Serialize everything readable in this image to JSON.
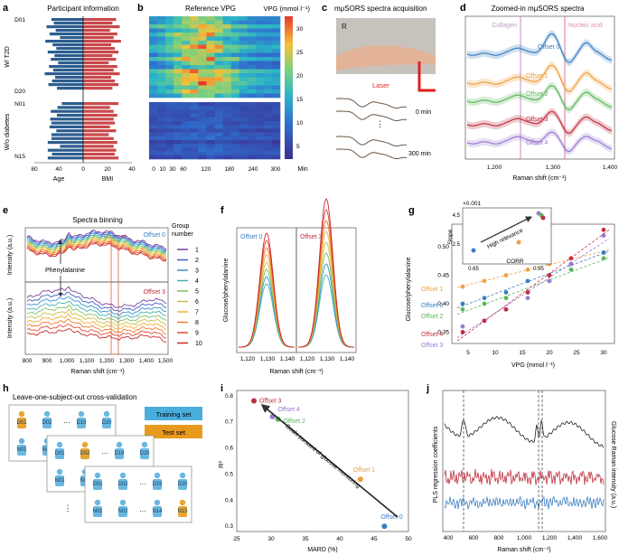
{
  "panels": {
    "a": {
      "letter": "a",
      "title": "Participant information",
      "group1": "W/ T2D",
      "group2": "W/o diabetes",
      "row_labels": [
        "D01",
        "D20",
        "N01",
        "N15"
      ],
      "xlabel_left": "Age",
      "xlabel_right": "BMI",
      "xticks": [
        "80",
        "40",
        "0",
        "20",
        "40"
      ]
    },
    "b": {
      "letter": "b",
      "title": "Reference VPG",
      "xlabel": "Min",
      "cbar_label": "VPG (mmol l⁻¹)",
      "xticks": [
        "0",
        "10",
        "30",
        "60",
        "120",
        "180",
        "240",
        "300"
      ],
      "cbar_ticks": [
        "30",
        "25",
        "20",
        "15",
        "10",
        "5"
      ]
    },
    "c": {
      "letter": "c",
      "title": "mμSORS spectra acquisition",
      "corner": "R",
      "laser": "Laser",
      "t_start": "0 min",
      "t_end": "300 min",
      "dots": "⋮"
    },
    "d": {
      "letter": "d",
      "title": "Zoomed-in mμSORS spectra",
      "xlabel": "Raman shift (cm⁻¹)",
      "xticks": [
        "1,200",
        "1,300",
        "1,400"
      ],
      "marker1": "Collagen",
      "marker2": "Nucleic acid",
      "offsets": [
        "Offset 0",
        "Offset 1",
        "Offset 2",
        "Offset 3",
        "Offset 4"
      ]
    },
    "e": {
      "letter": "e",
      "title": "Spectra binning",
      "ylabel_top": "Intensity (a.u.)",
      "ylabel_bottom": "Intensity (a.u.)",
      "xlabel": "Raman shift (cm⁻¹)",
      "xticks": [
        "800",
        "900",
        "1,000",
        "1,100",
        "1,200",
        "1,300",
        "1,400",
        "1,500"
      ],
      "offset_top": "Offset 0",
      "offset_bottom": "Offset 3",
      "glucose": "Glucose",
      "phenylalanine": "Phenylalanine",
      "legend_title": "Group\nnumber",
      "legend": [
        "1",
        "2",
        "3",
        "4",
        "5",
        "6",
        "7",
        "8",
        "9",
        "10"
      ]
    },
    "f": {
      "letter": "f",
      "ylabel": "Glucose/phenylalanine",
      "xlabel": "Raman shift (cm⁻¹)",
      "xticks": [
        "1,120",
        "1,130",
        "1,140"
      ],
      "label_left": "Offset 0",
      "label_right": "Offset 3"
    },
    "g": {
      "letter": "g",
      "ylabel": "Glucose/phenylalanine",
      "xlabel": "VPG (mmol l⁻¹)",
      "xticks": [
        "5",
        "10",
        "15",
        "20",
        "25",
        "30"
      ],
      "yticks": [
        "0.35",
        "0.40",
        "0.45",
        "0.50"
      ],
      "offsets": [
        "Offset 1",
        "Offset 0",
        "Offset 2",
        "Offset 4",
        "Offset 3"
      ],
      "inset_ylabel": "Slope",
      "inset_xlabel": "CORR",
      "inset_exp": "×0.001",
      "inset_yticks": [
        "2.5",
        "4.5"
      ],
      "inset_xticks": [
        "0.65",
        "0.95"
      ],
      "inset_arrow": "High relevance"
    },
    "h": {
      "letter": "h",
      "title": "Leave-one-subject-out cross-validation",
      "train": "Training set",
      "test": "Test set",
      "ids": [
        "D01",
        "D02",
        "D19",
        "D20",
        "N01",
        "N02",
        "N14",
        "N15"
      ],
      "dots": "…",
      "vdots": "⋮"
    },
    "i": {
      "letter": "i",
      "ylabel": "R²",
      "xlabel": "MARD (%)",
      "xticks": [
        "25",
        "30",
        "35",
        "40",
        "45",
        "50"
      ],
      "yticks": [
        "0.3",
        "0.4",
        "0.5",
        "0.6",
        "0.7",
        "0.8"
      ],
      "arrow": "Goals pursued of glucose monitoring",
      "labels": [
        "Offset 3",
        "Offset 4",
        "Offset 2",
        "Offset 1",
        "Offset 0"
      ]
    },
    "j": {
      "letter": "j",
      "ylabel": "PLS regression coefficients",
      "ylabel_right": "Glucose Raman intensity (a.u.)",
      "xlabel": "Raman shift (cm⁻¹)",
      "xticks": [
        "400",
        "600",
        "800",
        "1,000",
        "1,200",
        "1,400",
        "1,600"
      ]
    }
  },
  "colors": {
    "t2d": "#2c5d8f",
    "nodiab": "#c9484b",
    "offset0": "#3a7fc1",
    "offset1": "#f0a040",
    "offset2": "#5bb75b",
    "offset3": "#c03040",
    "offset4": "#9a7ad0",
    "train": "#4aaedc",
    "test": "#e89a1e",
    "person": "#6ab8e0",
    "test_person": "#e8a530"
  },
  "chart_data": [
    {
      "type": "bar",
      "panel": "a",
      "series": [
        {
          "name": "Age",
          "values": [
            52,
            48,
            60,
            45,
            55,
            38,
            62,
            50,
            44,
            58,
            47,
            53,
            41,
            56,
            49,
            63,
            46,
            51,
            57,
            43
          ]
        },
        {
          "name": "BMI",
          "values": [
            27,
            24,
            30,
            22,
            28,
            25,
            31,
            23,
            26,
            29,
            24,
            27,
            21,
            28,
            25,
            30,
            23,
            26,
            29,
            24
          ]
        }
      ]
    },
    {
      "type": "heatmap",
      "panel": "b",
      "x": [
        "0",
        "10",
        "30",
        "60",
        "120",
        "180",
        "240",
        "300"
      ],
      "vrange": [
        3,
        32
      ]
    },
    {
      "type": "scatter",
      "panel": "i",
      "xlabel": "MARD (%)",
      "ylabel": "R²",
      "xlim": [
        25,
        50
      ],
      "ylim": [
        0.28,
        0.82
      ],
      "series": [
        {
          "name": "Offset 3",
          "values": [
            [
              27.5,
              0.78
            ]
          ]
        },
        {
          "name": "Offset 4",
          "values": [
            [
              30.2,
              0.72
            ]
          ]
        },
        {
          "name": "Offset 2",
          "values": [
            [
              31.0,
              0.71
            ]
          ]
        },
        {
          "name": "Offset 1",
          "values": [
            [
              43.0,
              0.48
            ]
          ]
        },
        {
          "name": "Offset 0",
          "values": [
            [
              46.5,
              0.3
            ]
          ]
        }
      ]
    },
    {
      "type": "scatter",
      "panel": "g",
      "xlabel": "VPG (mmol l⁻¹)",
      "ylabel": "Glucose/phenylalanine",
      "xlim": [
        2,
        32
      ],
      "ylim": [
        0.33,
        0.54
      ],
      "series": [
        {
          "name": "Offset 1",
          "values": [
            [
              4,
              0.43
            ],
            [
              8,
              0.44
            ],
            [
              12,
              0.45
            ],
            [
              16,
              0.46
            ],
            [
              20,
              0.47
            ],
            [
              24,
              0.48
            ],
            [
              30,
              0.49
            ]
          ]
        },
        {
          "name": "Offset 0",
          "values": [
            [
              4,
              0.4
            ],
            [
              8,
              0.41
            ],
            [
              12,
              0.42
            ],
            [
              16,
              0.44
            ],
            [
              20,
              0.45
            ],
            [
              24,
              0.47
            ],
            [
              30,
              0.49
            ]
          ]
        },
        {
          "name": "Offset 2",
          "values": [
            [
              4,
              0.39
            ],
            [
              8,
              0.4
            ],
            [
              12,
              0.41
            ],
            [
              16,
              0.42
            ],
            [
              20,
              0.44
            ],
            [
              24,
              0.46
            ],
            [
              30,
              0.48
            ]
          ]
        },
        {
          "name": "Offset 4",
          "values": [
            [
              4,
              0.36
            ],
            [
              8,
              0.37
            ],
            [
              12,
              0.39
            ],
            [
              16,
              0.41
            ],
            [
              20,
              0.44
            ],
            [
              24,
              0.47
            ],
            [
              30,
              0.52
            ]
          ]
        },
        {
          "name": "Offset 3",
          "values": [
            [
              4,
              0.35
            ],
            [
              8,
              0.37
            ],
            [
              12,
              0.39
            ],
            [
              16,
              0.42
            ],
            [
              20,
              0.45
            ],
            [
              24,
              0.48
            ],
            [
              30,
              0.53
            ]
          ]
        }
      ]
    }
  ]
}
